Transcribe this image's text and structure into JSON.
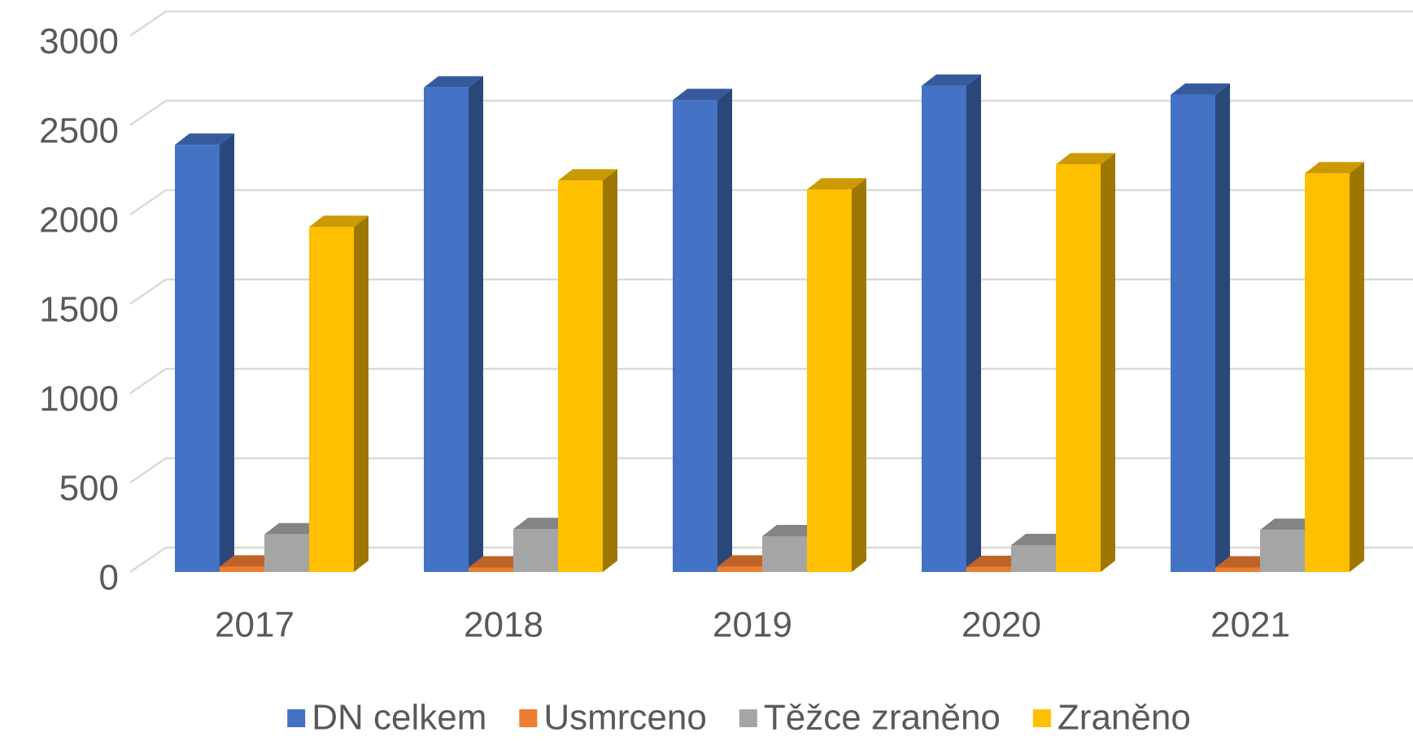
{
  "chart_data": {
    "type": "bar3d",
    "categories": [
      "2017",
      "2018",
      "2019",
      "2020",
      "2021"
    ],
    "series": [
      {
        "name": "DN celkem",
        "color": "#4472c4",
        "values": [
          2390,
          2710,
          2640,
          2720,
          2670
        ]
      },
      {
        "name": "Usmrceno",
        "color": "#ed7d31",
        "values": [
          30,
          25,
          30,
          28,
          25
        ]
      },
      {
        "name": "Těžce zraněno",
        "color": "#a5a5a5",
        "values": [
          210,
          240,
          200,
          150,
          235
        ]
      },
      {
        "name": "Zraněno",
        "color": "#ffc000",
        "values": [
          1930,
          2190,
          2140,
          2280,
          2230
        ]
      }
    ],
    "ylim": [
      0,
      3000
    ],
    "yticks": [
      0,
      500,
      1000,
      1500,
      2000,
      2500,
      3000
    ],
    "grid": true,
    "legend": "bottom"
  }
}
